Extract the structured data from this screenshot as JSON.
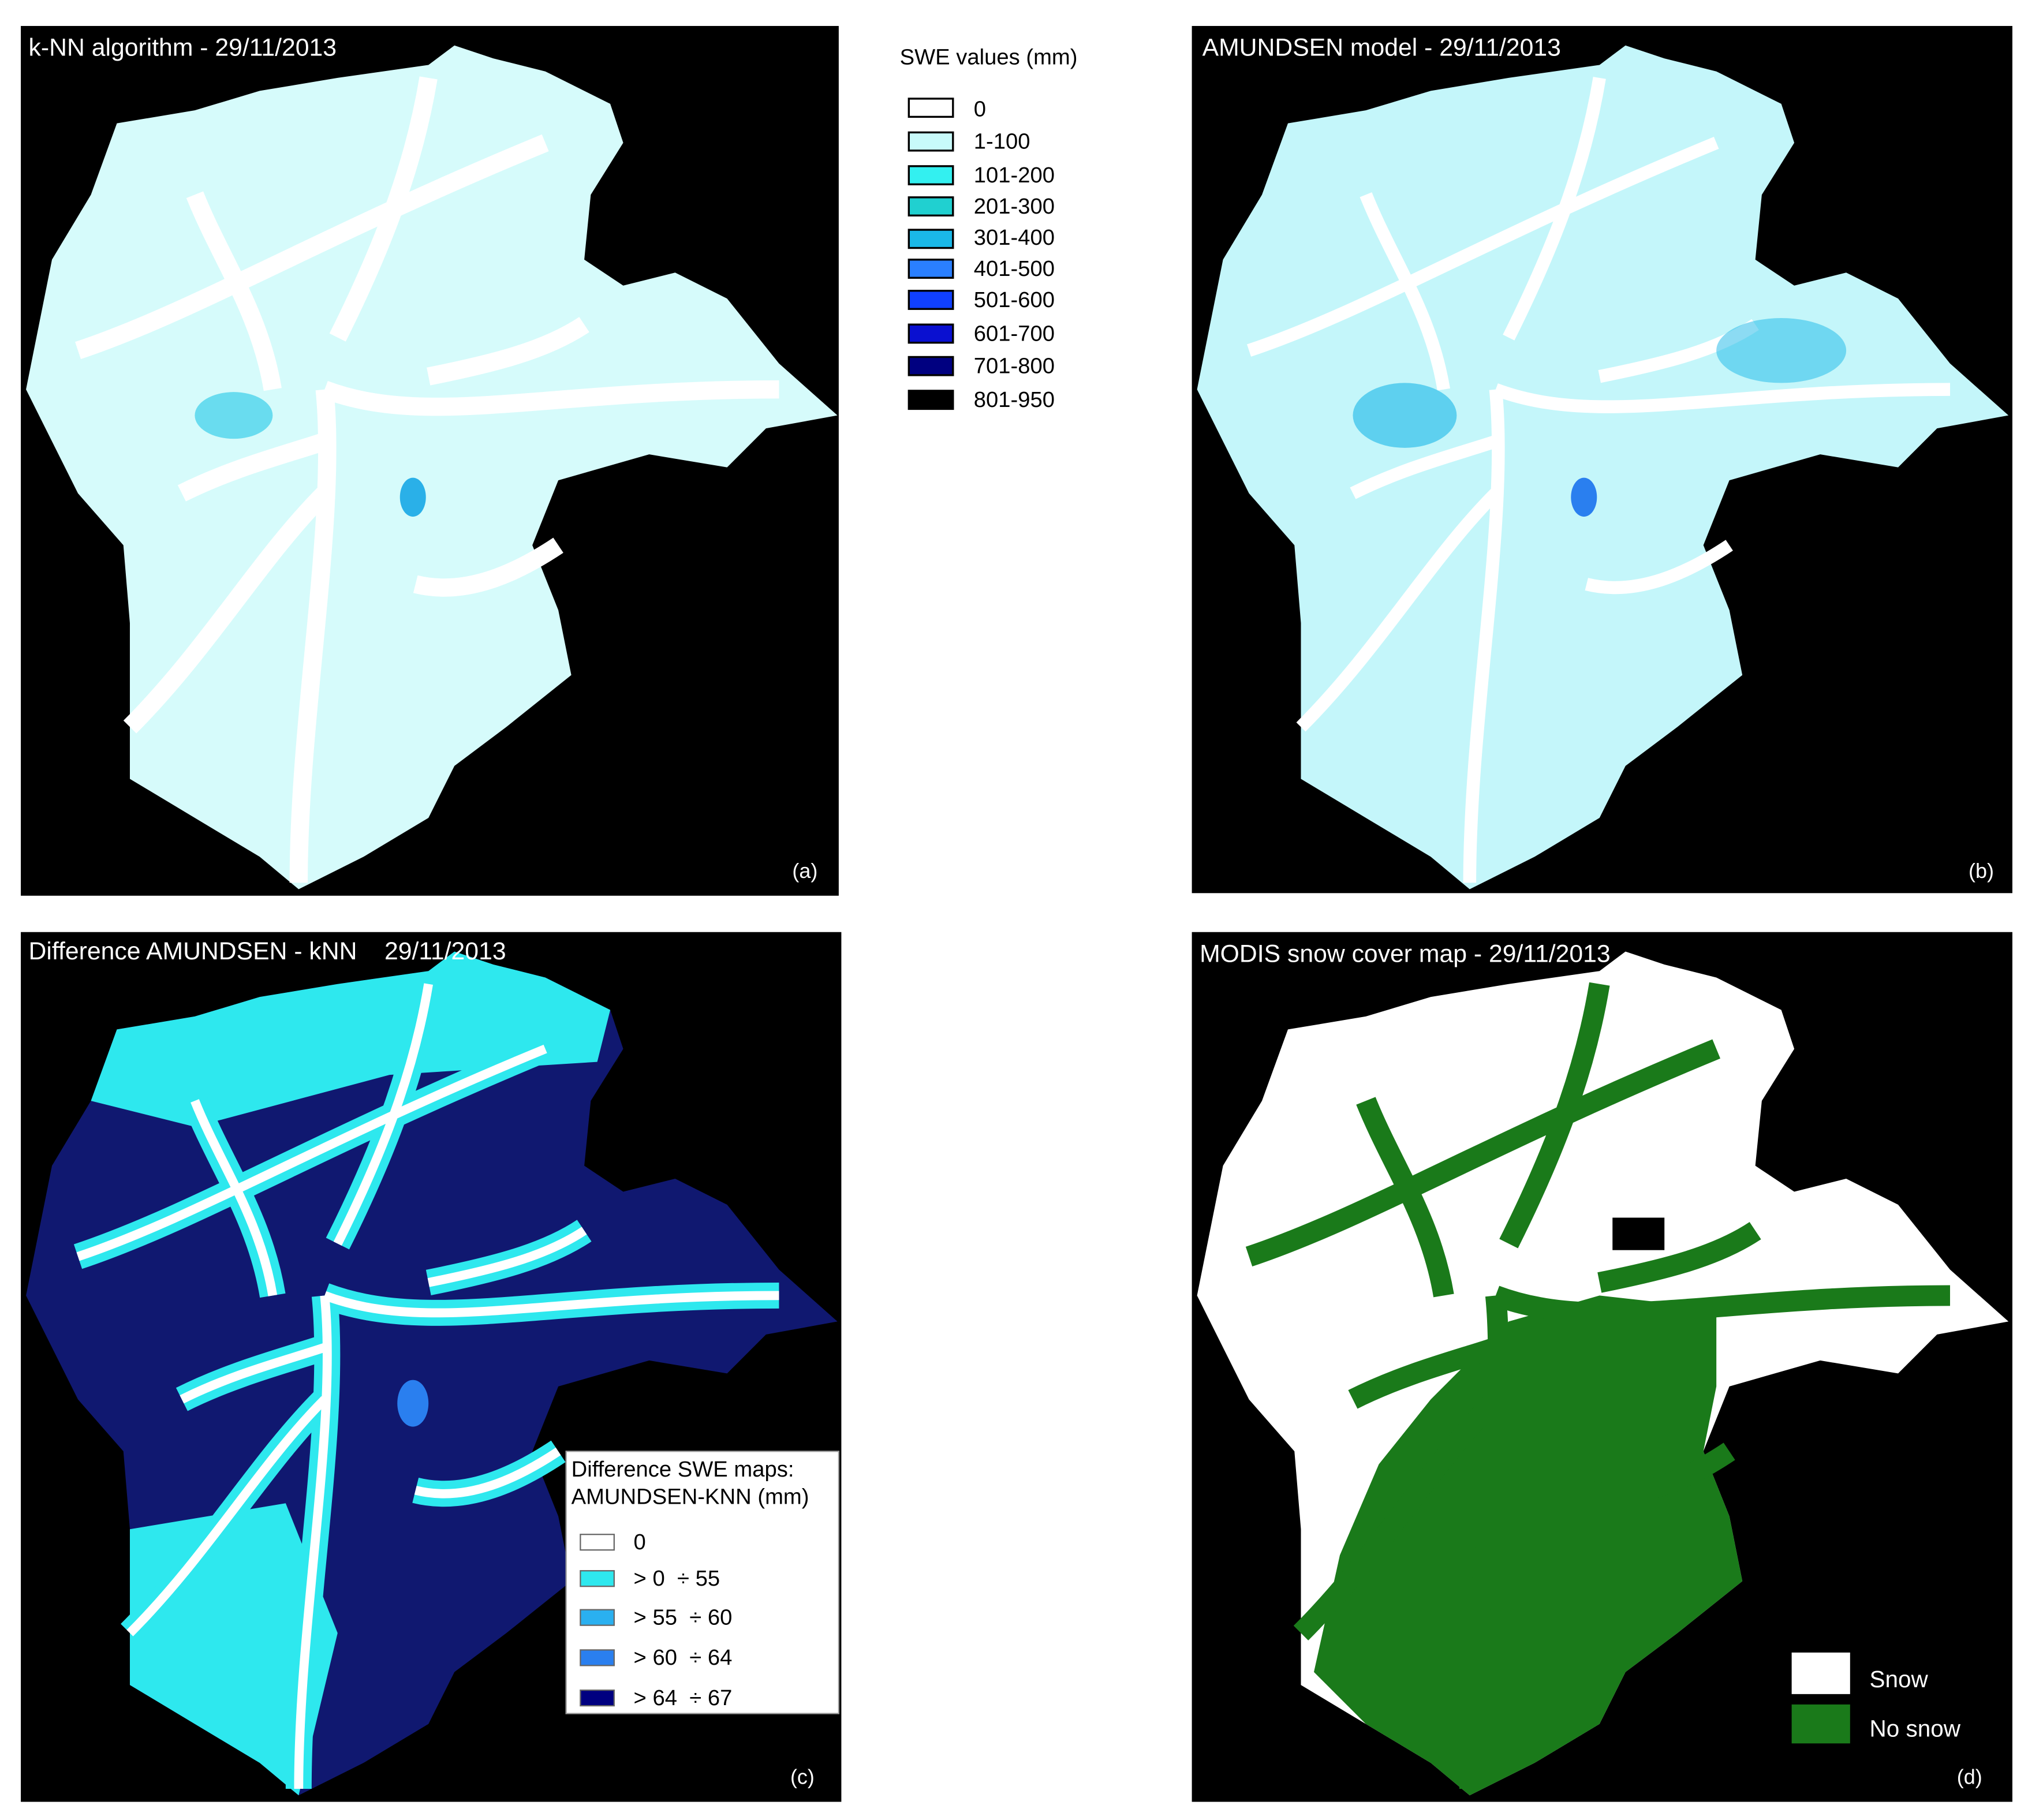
{
  "panels": [
    {
      "title": "k-NN algorithm - 29/11/2013",
      "label": "(a)"
    },
    {
      "title": "AMUNDSEN model - 29/11/2013",
      "label": "(b)"
    },
    {
      "title": "Difference AMUNDSEN - kNN    29/11/2013",
      "label": "(c)"
    },
    {
      "title": "MODIS snow cover map - 29/11/2013",
      "label": "(d)"
    }
  ],
  "swe_legend": {
    "title": "SWE values (mm)",
    "items": [
      "0",
      "1-100",
      "101-200",
      "201-300",
      "301-400",
      "401-500",
      "501-600",
      "601-700",
      "701-800",
      "801-950"
    ]
  },
  "difference_legend": {
    "title": [
      "Difference SWE maps:",
      "AMUNDSEN-KNN (mm)"
    ],
    "items": [
      "0",
      "> 0  ÷ 55",
      "> 55  ÷ 60",
      "> 60  ÷ 64",
      "> 64  ÷ 67"
    ]
  },
  "modis_legend": {
    "items": [
      "Snow",
      "No snow"
    ]
  }
}
